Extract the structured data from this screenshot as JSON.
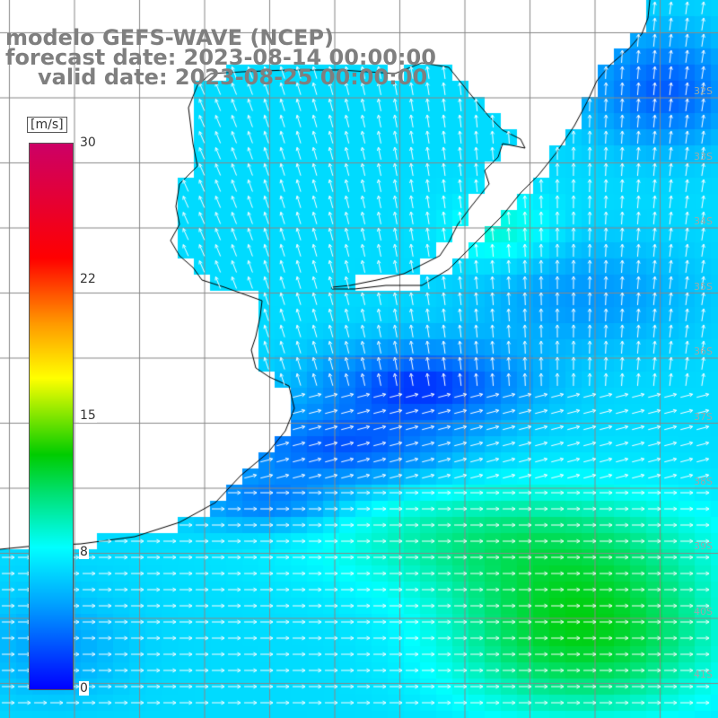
{
  "titles": {
    "model": "modelo GEFS-WAVE (NCEP)",
    "forecast": "forecast date: 2023-08-14 00:00:00",
    "valid": "valid date: 2023-08-25 00:00:00"
  },
  "colorbar": {
    "unit": "[m/s]",
    "ticks": [
      "30",
      "22",
      "15",
      "8",
      "0"
    ],
    "range": [
      0,
      30
    ],
    "colors": [
      "#0000ff",
      "#00a5ff",
      "#00ffff",
      "#00cc00",
      "#ffff00",
      "#ff9900",
      "#ff0000",
      "#cc0066"
    ]
  },
  "lat_labels": [
    "32S",
    "33S",
    "34S",
    "35S",
    "36S",
    "37S",
    "38S",
    "39S",
    "40S",
    "41S"
  ],
  "colors": {
    "land": "#ffffff",
    "grid": "#888888",
    "coast": "#000000",
    "arrow": "#ffffff"
  }
}
